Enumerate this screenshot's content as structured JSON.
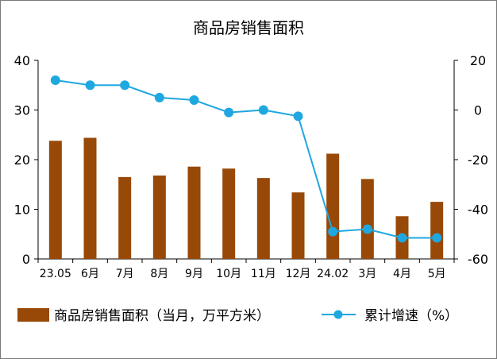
{
  "chart_data": {
    "type": "bar+line",
    "title": "商品房销售面积",
    "categories": [
      "23.05",
      "6月",
      "7月",
      "8月",
      "9月",
      "10月",
      "11月",
      "12月",
      "24.02",
      "3月",
      "4月",
      "5月"
    ],
    "series": [
      {
        "name": "商品房销售面积（当月，万平方米）",
        "type": "bar",
        "axis": "left",
        "color": "#984807",
        "values": [
          23.8,
          24.4,
          16.5,
          16.8,
          18.6,
          18.2,
          16.3,
          13.4,
          21.2,
          16.1,
          8.6,
          11.5
        ]
      },
      {
        "name": "累计增速（%）",
        "type": "line",
        "axis": "right",
        "color": "#1FA7E0",
        "values": [
          12.0,
          10.0,
          10.0,
          5.0,
          4.0,
          -1.0,
          0.0,
          -2.5,
          -49.0,
          -48.0,
          -51.5,
          -51.5
        ]
      }
    ],
    "y_left": {
      "min": 0,
      "max": 40,
      "ticks": [
        "0",
        "10",
        "20",
        "30",
        "40"
      ]
    },
    "y_right": {
      "min": -60,
      "max": 20,
      "ticks": [
        "-60",
        "-40",
        "-20",
        "0",
        "20"
      ]
    },
    "grid": false,
    "legend_position": "bottom"
  }
}
